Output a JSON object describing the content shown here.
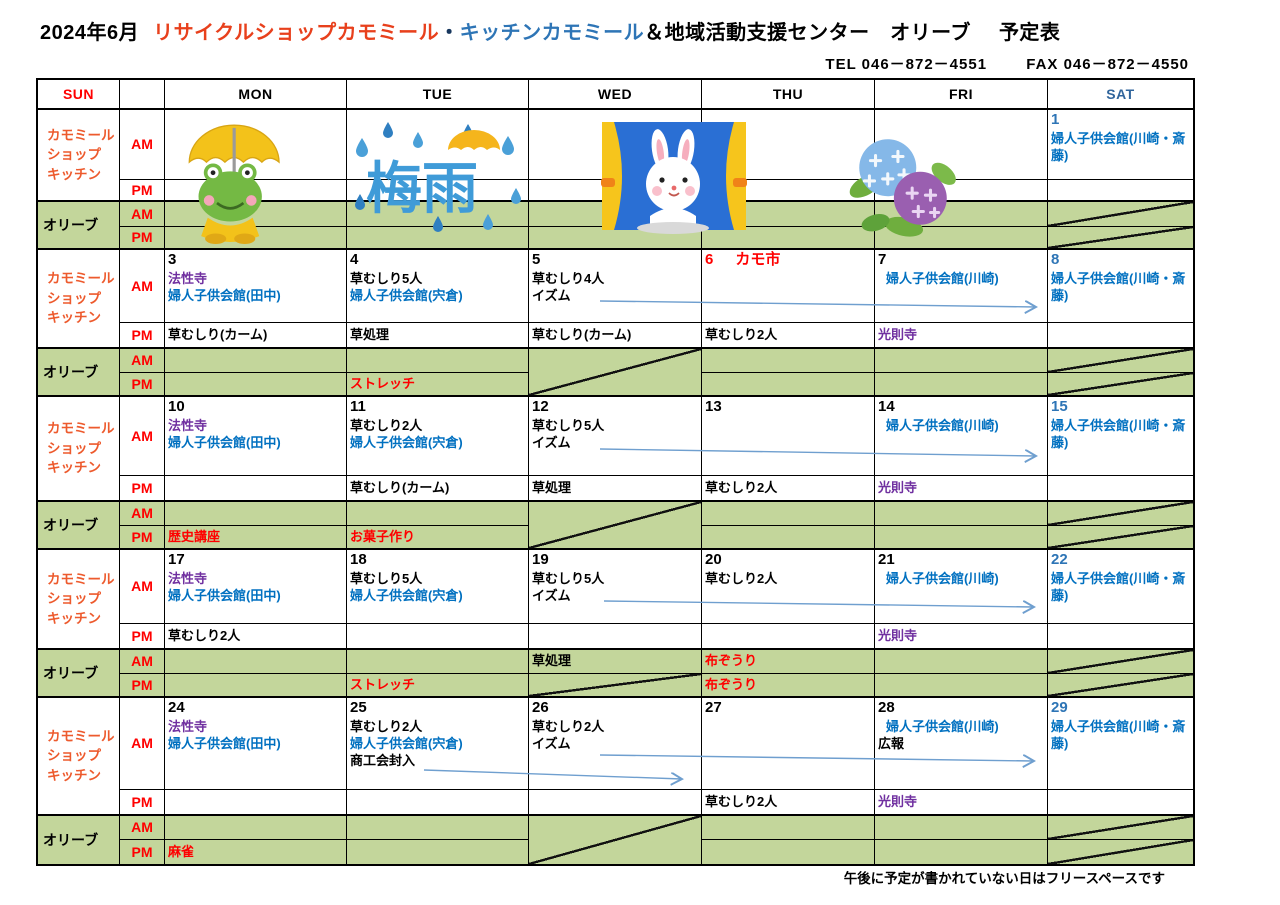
{
  "title": {
    "month": "2024年6月",
    "shop": "リサイクルショップカモミール",
    "separator": "・",
    "kitchen": "キッチンカモミール",
    "org": "＆地域活動支援センター　オリーブ",
    "label": "予定表"
  },
  "contact": {
    "tel": "TEL 046－872－4551",
    "fax": "FAX 046－872－4550"
  },
  "header": [
    "SUN",
    "",
    "MON",
    "TUE",
    "WED",
    "THU",
    "FRI",
    "SAT"
  ],
  "row_labels": {
    "camomile": [
      "カモミール",
      "ショップ",
      "キッチン"
    ],
    "olive": "オリーブ",
    "am": "AM",
    "pm": "PM"
  },
  "colors": {
    "accent_red": "#ff0000",
    "camomile_orange": "#ed5a2d",
    "title_shop_red": "#e8401c",
    "title_kitchen_blue": "#2e75b6",
    "location_blue": "#0070c0",
    "temple_purple": "#7030a0",
    "saturday_blue": "#2e75b6",
    "olive_green": "#c3d69b",
    "arrow_blue": "#6f9fcf"
  },
  "artwork": {
    "rainy_season_text": "梅雨"
  },
  "footer_note": "午後に予定が書かれていない日はフリースペースです",
  "weeks": [
    {
      "days": [
        {},
        {},
        {},
        {},
        {},
        {
          "num": "1",
          "numColor": "sat",
          "am": [
            {
              "t": "婦人子供会館(川崎・斎藤)",
              "c": "blue"
            }
          ],
          "pm": []
        }
      ],
      "oliveAm": [
        {},
        {},
        {},
        {},
        {},
        {
          "diag": true
        }
      ],
      "olivePm": [
        {},
        {},
        {},
        {},
        {},
        {
          "diag": true
        }
      ]
    },
    {
      "days": [
        {
          "num": "3",
          "am": [
            {
              "t": "法性寺",
              "c": "purple"
            },
            {
              "t": "婦人子供会館(田中)",
              "c": "blue"
            }
          ],
          "pm": [
            {
              "t": "草むしり(カーム)",
              "c": "black"
            }
          ]
        },
        {
          "num": "4",
          "am": [
            {
              "t": "草むしり5人",
              "c": "black"
            },
            {
              "t": "婦人子供会館(宍倉)",
              "c": "blue"
            }
          ],
          "pm": [
            {
              "t": "草処理",
              "c": "black"
            }
          ]
        },
        {
          "num": "5",
          "am": [
            {
              "t": "草むしり4人",
              "c": "black"
            },
            {
              "t": "イズム",
              "c": "black"
            }
          ],
          "pm": [
            {
              "t": "草むしり(カーム)",
              "c": "black"
            }
          ]
        },
        {
          "num": "6",
          "numColor": "red",
          "tag": "カモ市",
          "am": [],
          "pm": [
            {
              "t": "草むしり2人",
              "c": "black"
            }
          ]
        },
        {
          "num": "7",
          "am": [
            {
              "t": "婦人子供会館(川崎)",
              "c": "blue",
              "indent": true
            }
          ],
          "pm": [
            {
              "t": "光則寺",
              "c": "purple"
            }
          ]
        },
        {
          "num": "8",
          "numColor": "sat",
          "am": [
            {
              "t": "婦人子供会館(川崎・斎藤)",
              "c": "blue"
            }
          ],
          "pm": []
        }
      ],
      "oliveAm": [
        {},
        {},
        {
          "diag": true,
          "span": 2
        },
        {},
        {},
        {
          "diag": true
        }
      ],
      "olivePm": [
        {},
        {
          "t": "ストレッチ",
          "c": "red"
        },
        null,
        {},
        {},
        {
          "diag": true
        }
      ]
    },
    {
      "days": [
        {
          "num": "10",
          "am": [
            {
              "t": "法性寺",
              "c": "purple"
            },
            {
              "t": "婦人子供会館(田中)",
              "c": "blue"
            }
          ],
          "pm": []
        },
        {
          "num": "11",
          "am": [
            {
              "t": "草むしり2人",
              "c": "black"
            },
            {
              "t": "婦人子供会館(宍倉)",
              "c": "blue"
            }
          ],
          "pm": [
            {
              "t": "草むしり(カーム)",
              "c": "black"
            }
          ]
        },
        {
          "num": "12",
          "am": [
            {
              "t": "草むしり5人",
              "c": "black"
            },
            {
              "t": "イズム",
              "c": "black"
            }
          ],
          "pm": [
            {
              "t": "草処理",
              "c": "black"
            }
          ]
        },
        {
          "num": "13",
          "am": [],
          "pm": [
            {
              "t": "草むしり2人",
              "c": "black"
            }
          ]
        },
        {
          "num": "14",
          "am": [
            {
              "t": "婦人子供会館(川崎)",
              "c": "blue",
              "indent": true
            }
          ],
          "pm": [
            {
              "t": "光則寺",
              "c": "purple"
            }
          ]
        },
        {
          "num": "15",
          "numColor": "sat",
          "am": [
            {
              "t": "婦人子供会館(川崎・斎藤)",
              "c": "blue"
            }
          ],
          "pm": []
        }
      ],
      "oliveAm": [
        {},
        {},
        {
          "diag": true,
          "span": 2
        },
        {},
        {},
        {
          "diag": true
        }
      ],
      "olivePm": [
        {
          "t": "歴史講座",
          "c": "red"
        },
        {
          "t": "お菓子作り",
          "c": "red"
        },
        null,
        {},
        {},
        {
          "diag": true
        }
      ]
    },
    {
      "days": [
        {
          "num": "17",
          "am": [
            {
              "t": "法性寺",
              "c": "purple"
            },
            {
              "t": "婦人子供会館(田中)",
              "c": "blue"
            }
          ],
          "pm": [
            {
              "t": "草むしり2人",
              "c": "black"
            }
          ]
        },
        {
          "num": "18",
          "am": [
            {
              "t": "草むしり5人",
              "c": "black"
            },
            {
              "t": "婦人子供会館(宍倉)",
              "c": "blue"
            }
          ],
          "pm": []
        },
        {
          "num": "19",
          "am": [
            {
              "t": "草むしり5人",
              "c": "black"
            },
            {
              "t": "イズム",
              "c": "black"
            }
          ],
          "pm": []
        },
        {
          "num": "20",
          "am": [
            {
              "t": "草むしり2人",
              "c": "black"
            }
          ],
          "pm": []
        },
        {
          "num": "21",
          "am": [
            {
              "t": "婦人子供会館(川崎)",
              "c": "blue",
              "indent": true
            }
          ],
          "pm": [
            {
              "t": "光則寺",
              "c": "purple"
            }
          ]
        },
        {
          "num": "22",
          "numColor": "sat",
          "am": [
            {
              "t": "婦人子供会館(川崎・斎藤)",
              "c": "blue"
            }
          ],
          "pm": []
        }
      ],
      "oliveAm": [
        {},
        {},
        {
          "t": "草処理",
          "c": "black"
        },
        {
          "t": "布ぞうり",
          "c": "red"
        },
        {},
        {
          "diag": true
        }
      ],
      "olivePm": [
        {},
        {
          "t": "ストレッチ",
          "c": "red"
        },
        {
          "diag": true
        },
        {
          "t": "布ぞうり",
          "c": "red"
        },
        {},
        {
          "diag": true
        }
      ]
    },
    {
      "days": [
        {
          "num": "24",
          "am": [
            {
              "t": "法性寺",
              "c": "purple"
            },
            {
              "t": "婦人子供会館(田中)",
              "c": "blue"
            }
          ],
          "pm": []
        },
        {
          "num": "25",
          "am": [
            {
              "t": "草むしり2人",
              "c": "black"
            },
            {
              "t": "婦人子供会館(宍倉)",
              "c": "blue"
            },
            {
              "t": "商工会封入",
              "c": "black"
            }
          ],
          "pm": []
        },
        {
          "num": "26",
          "am": [
            {
              "t": "草むしり2人",
              "c": "black"
            },
            {
              "t": "イズム",
              "c": "black"
            }
          ],
          "pm": []
        },
        {
          "num": "27",
          "am": [],
          "pm": [
            {
              "t": "草むしり2人",
              "c": "black"
            }
          ]
        },
        {
          "num": "28",
          "am": [
            {
              "t": "婦人子供会館(川崎)",
              "c": "blue",
              "indent": true
            },
            {
              "t": "広報",
              "c": "black"
            }
          ],
          "pm": [
            {
              "t": "光則寺",
              "c": "purple"
            }
          ]
        },
        {
          "num": "29",
          "numColor": "sat",
          "am": [
            {
              "t": "婦人子供会館(川崎・斎藤)",
              "c": "blue"
            }
          ],
          "pm": []
        }
      ],
      "oliveAm": [
        {},
        {},
        {
          "diag": true,
          "span": 2
        },
        {},
        {},
        {
          "diag": true
        }
      ],
      "olivePm": [
        {
          "t": "麻雀",
          "c": "red"
        },
        {},
        null,
        {},
        {},
        {
          "diag": true
        }
      ]
    }
  ]
}
